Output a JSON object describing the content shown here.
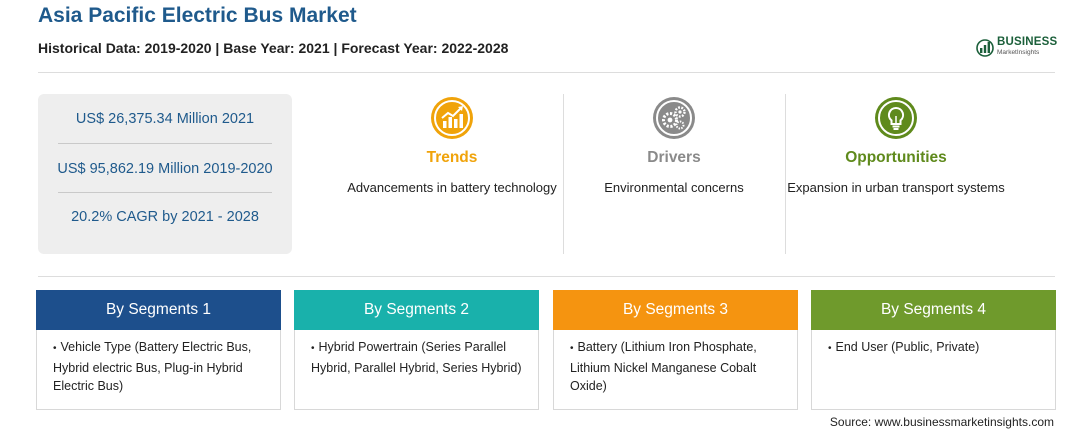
{
  "header": {
    "title": "Asia Pacific Electric Bus Market",
    "subtitle": "Historical Data: 2019-2020 | Base Year: 2021 | Forecast Year: 2022-2028"
  },
  "logo": {
    "main": "BUSINESS",
    "sub": "MarketInsights",
    "color": "#1b5f3a"
  },
  "stats": [
    "US$ 26,375.34 Million 2021",
    "US$ 95,862.19 Million 2019-2020",
    "20.2% CAGR by 2021 - 2028"
  ],
  "highlights": [
    {
      "heading": "Trends",
      "icon": "trend-chart-icon",
      "color": "#f0a30a",
      "text": "Advancements in battery technology"
    },
    {
      "heading": "Drivers",
      "icon": "gears-icon",
      "color": "#8a8a8a",
      "text": "Environmental concerns"
    },
    {
      "heading": "Opportunities",
      "icon": "lightbulb-icon",
      "color": "#5f8a1c",
      "text": "Expansion in urban transport systems"
    }
  ],
  "segments": [
    {
      "label": "By Segments 1",
      "color": "#1d4f8c",
      "item": "Vehicle Type (Battery Electric Bus, Hybrid electric Bus, Plug-in Hybrid Electric Bus)"
    },
    {
      "label": "By Segments 2",
      "color": "#19b1ab",
      "item": "Hybrid Powertrain (Series Parallel Hybrid, Parallel Hybrid, Series Hybrid)"
    },
    {
      "label": "By Segments 3",
      "color": "#f59410",
      "item": "Battery (Lithium Iron Phosphate, Lithium Nickel Manganese Cobalt Oxide)"
    },
    {
      "label": "By Segments 4",
      "color": "#6f9a2c",
      "item": "End User (Public, Private)"
    }
  ],
  "source": "Source: www.businessmarketinsights.com"
}
